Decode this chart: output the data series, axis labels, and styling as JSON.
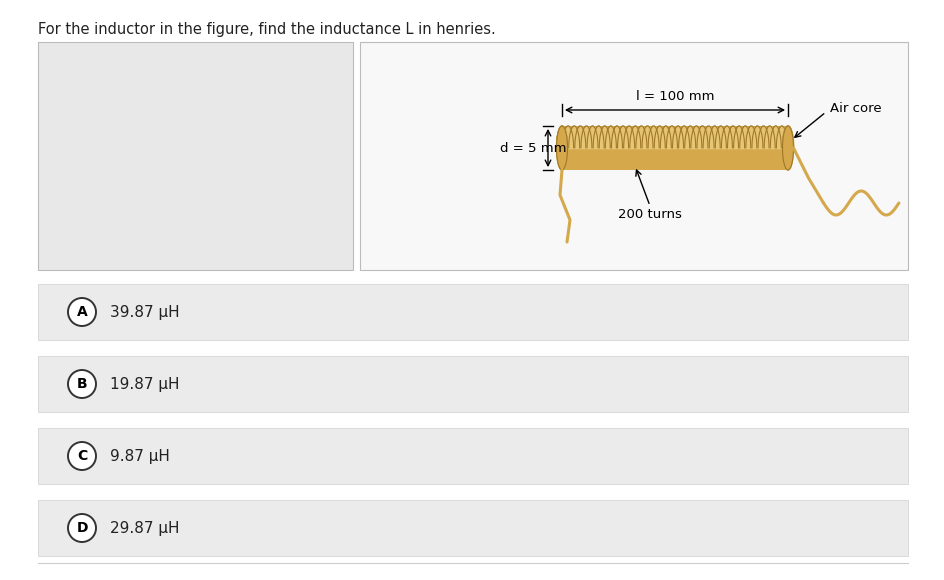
{
  "title": "For the inductor in the figure, find the inductance L in henries.",
  "title_fontsize": 10.5,
  "bg_color": "#ffffff",
  "left_panel_color": "#e8e8e8",
  "right_panel_color": "#f0f0f0",
  "options": [
    "A",
    "B",
    "C",
    "D"
  ],
  "option_texts": [
    "39.87 μH",
    "19.87 μH",
    "9.87 μH",
    "29.87 μH"
  ],
  "option_bg": "#ebebeb",
  "option_border": "#d0d0d0",
  "coil_fill": "#d4a84b",
  "coil_dark": "#a07828",
  "coil_light": "#e8c878",
  "coil_shadow": "#b89040",
  "diagram_label_l": "l = 100 mm",
  "diagram_label_d": "d = 5 mm",
  "diagram_label_turns": "200 turns",
  "diagram_label_core": "Air core"
}
